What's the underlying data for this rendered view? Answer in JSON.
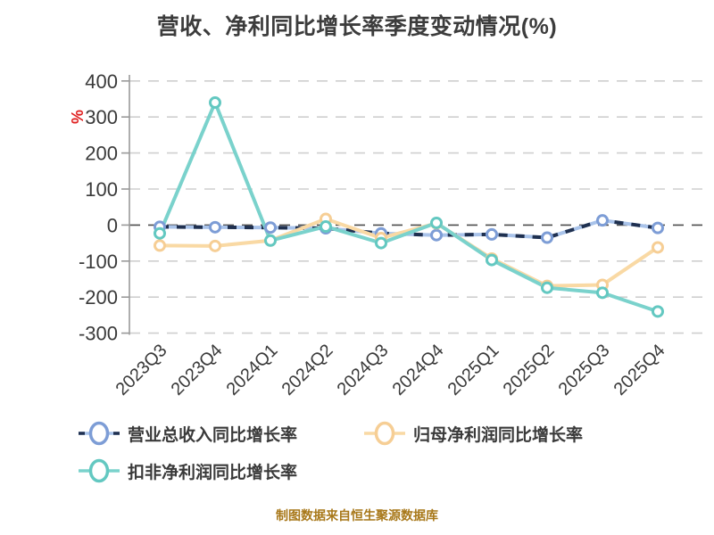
{
  "title": "营收、净利同比增长率季度变动情况(%)",
  "caption": "制图数据来自恒生聚源数据库",
  "colors": {
    "background": "#ffffff",
    "title_text": "#3c3c3c",
    "axis_line": "#999999",
    "tick_label": "#3a3a3a",
    "gridline": "#cfcfcf",
    "zero_line": "#4d4d4d",
    "y_unit_label": "#e02020",
    "caption_text": "#a8781a",
    "legend_text": "#3a3a3a"
  },
  "chart_data": {
    "type": "line",
    "title": "营收、净利同比增长率季度变动情况(%)",
    "xlabel": "",
    "ylabel": "%",
    "ylim": [
      -300,
      400
    ],
    "ytick_interval": 100,
    "ytick_labels": [
      "400",
      "300",
      "200",
      "100",
      "0",
      "-100",
      "-200",
      "-300"
    ],
    "grid": true,
    "grid_style": "dashed",
    "legend_position": "bottom",
    "categories": [
      "2023Q3",
      "2023Q4",
      "2024Q1",
      "2024Q2",
      "2024Q3",
      "2024Q4",
      "2025Q1",
      "2025Q2",
      "2025Q3",
      "2025Q4"
    ],
    "series": [
      {
        "key": "total-revenue-yoy",
        "name": "营业总收入同比增长率",
        "style": "dashed",
        "marker_color": "#7d9dd6",
        "line_color": "#a9c3ea",
        "dash_overlay_color": "#1f3050",
        "values": [
          -5,
          -6,
          -7,
          -9,
          -23,
          -28,
          -26,
          -35,
          13,
          -8
        ]
      },
      {
        "key": "net-profit-yoy",
        "name": "归母净利润同比增长率",
        "style": "solid",
        "marker_color": "#f6ce95",
        "line_color": "#f9d9a4",
        "values": [
          -57,
          -58,
          -43,
          17,
          -36,
          5,
          -93,
          -169,
          -166,
          -62
        ]
      },
      {
        "key": "non-gaap-net-profit-yoy",
        "name": "扣非净利润同比增长率",
        "style": "solid",
        "marker_color": "#63c8c1",
        "line_color": "#7ad2cc",
        "values": [
          -23,
          340,
          -43,
          -4,
          -50,
          6,
          -97,
          -174,
          -188,
          -240
        ]
      }
    ]
  }
}
